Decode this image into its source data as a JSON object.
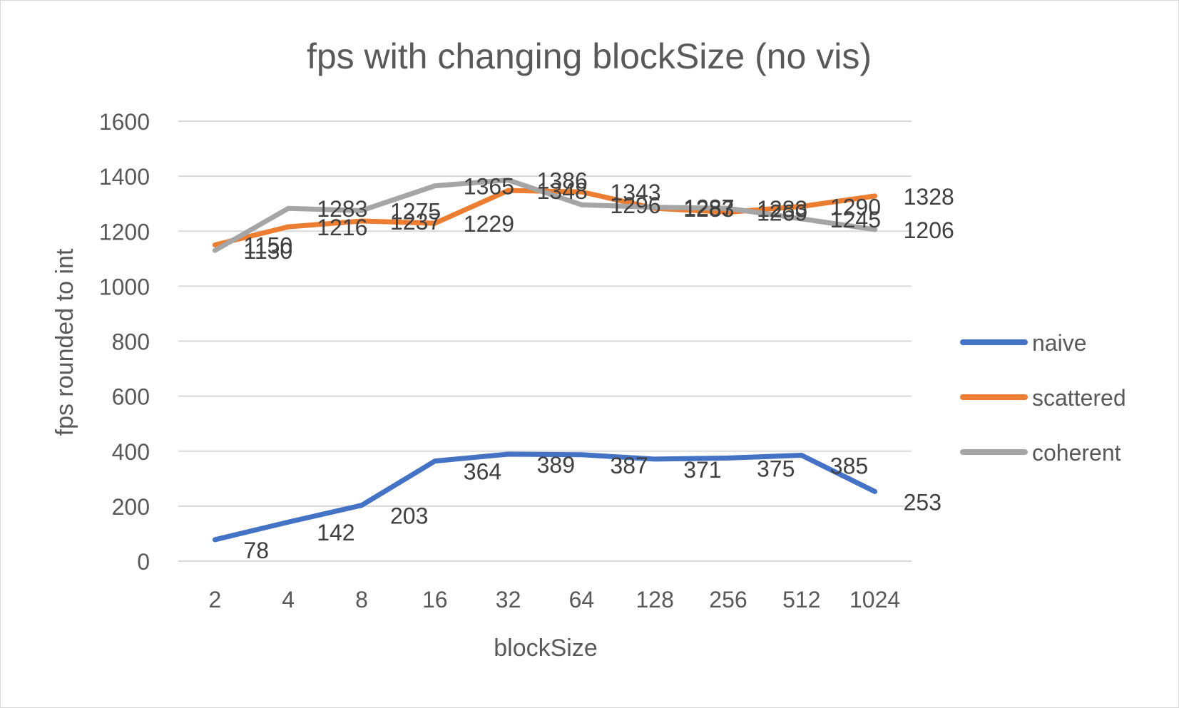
{
  "chart_data": {
    "type": "line",
    "title": "fps with changing blockSize (no vis)",
    "xlabel": "blockSize",
    "ylabel": "fps rounded to int",
    "categories": [
      "2",
      "4",
      "8",
      "16",
      "32",
      "64",
      "128",
      "256",
      "512",
      "1024"
    ],
    "ylim": [
      0,
      1600
    ],
    "yticks": [
      "0",
      "200",
      "400",
      "600",
      "800",
      "1000",
      "1200",
      "1400",
      "1600"
    ],
    "grid": true,
    "legend_position": "right",
    "series": [
      {
        "name": "naive",
        "color": "#4472C4",
        "values": [
          78,
          142,
          203,
          364,
          389,
          387,
          371,
          375,
          385,
          253
        ]
      },
      {
        "name": "scattered",
        "color": "#ED7D31",
        "values": [
          1150,
          1216,
          1237,
          1229,
          1348,
          1343,
          1283,
          1269,
          1290,
          1328
        ]
      },
      {
        "name": "coherent",
        "color": "#A5A5A5",
        "values": [
          1130,
          1283,
          1275,
          1365,
          1386,
          1296,
          1287,
          1283,
          1245,
          1206
        ]
      }
    ]
  }
}
